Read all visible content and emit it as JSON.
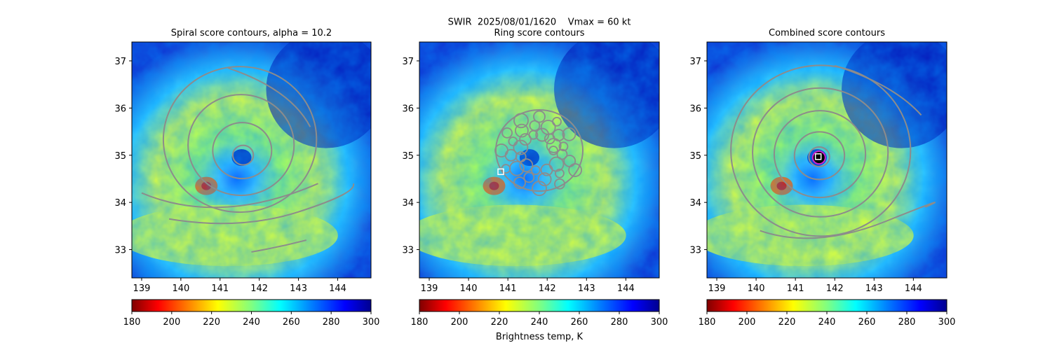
{
  "suptitle": "SWIR  2025/08/01/1620    Vmax = 60 kt",
  "colorbar": {
    "label": "Brightness temp, K",
    "ticks": [
      180,
      200,
      220,
      240,
      260,
      280,
      300
    ],
    "range": [
      180,
      300
    ],
    "colormap": "jet_r"
  },
  "chart_data": [
    {
      "type": "heatmap",
      "title": "Spiral score contours, alpha = 10.2",
      "xticks": [
        139,
        140,
        141,
        142,
        143,
        144
      ],
      "yticks": [
        33,
        34,
        35,
        36,
        37
      ],
      "xlim": [
        138.75,
        144.85
      ],
      "ylim": [
        32.4,
        37.4
      ],
      "overlay": "spiral contours (gray)"
    },
    {
      "type": "heatmap",
      "title": "Ring score contours",
      "xticks": [
        139,
        140,
        141,
        142,
        143,
        144
      ],
      "yticks": [
        33,
        34,
        35,
        36,
        37
      ],
      "xlim": [
        138.75,
        144.85
      ],
      "ylim": [
        32.4,
        37.4
      ],
      "overlay": "ring contours (gray)",
      "marker": {
        "x": 140.82,
        "y": 34.65
      }
    },
    {
      "type": "heatmap",
      "title": "Combined score contours",
      "xticks": [
        139,
        140,
        141,
        142,
        143,
        144
      ],
      "yticks": [
        33,
        34,
        35,
        36,
        37
      ],
      "xlim": [
        138.75,
        144.85
      ],
      "ylim": [
        32.4,
        37.4
      ],
      "overlay": "combined contours (gray)",
      "marker": {
        "x": 141.58,
        "y": 34.97
      }
    }
  ],
  "colors": {
    "contour": "#8c8c8c",
    "marker_edge": "#ffffff",
    "ring_highlight": "#cc22cc"
  }
}
